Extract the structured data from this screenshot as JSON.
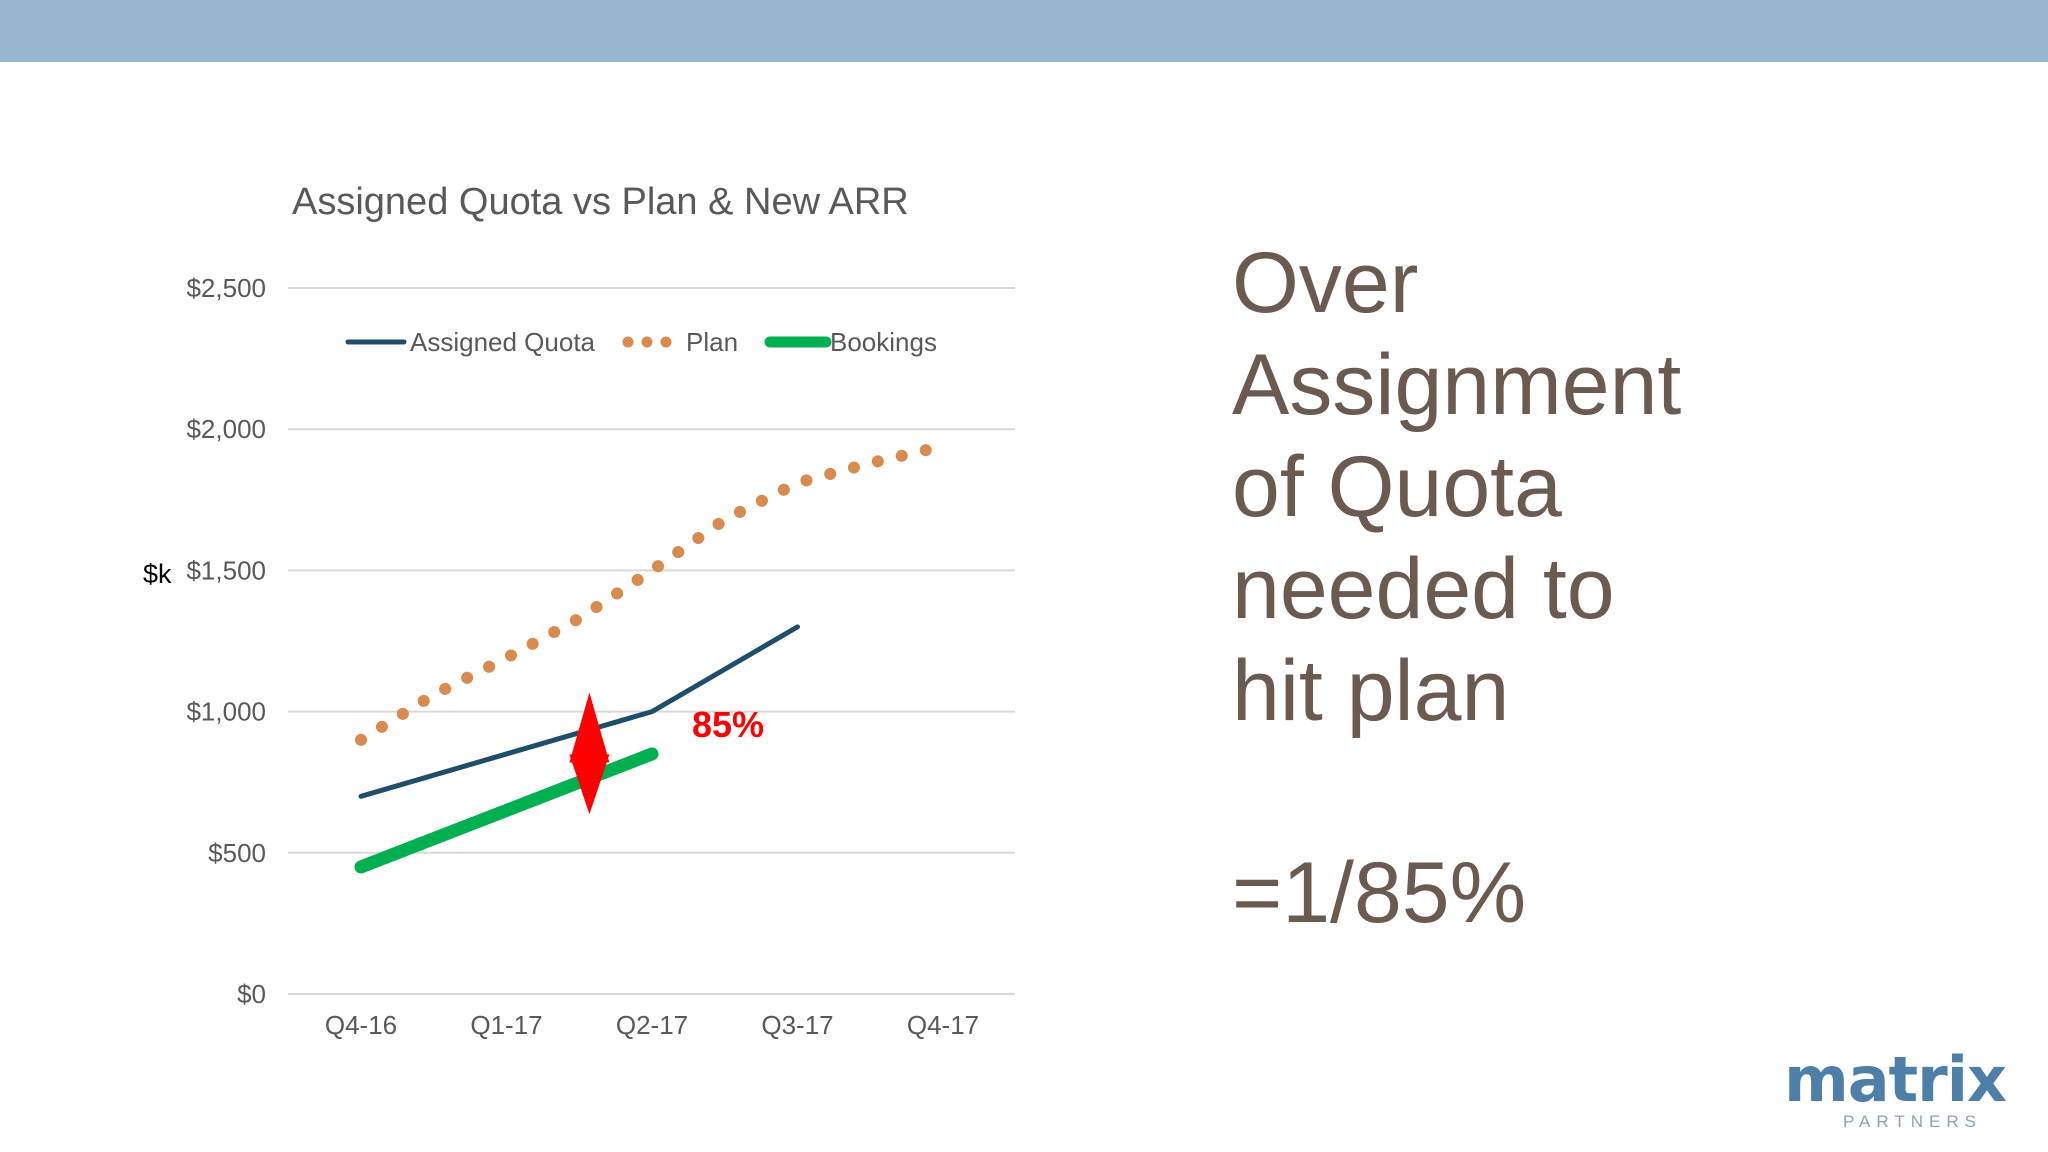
{
  "slide": {
    "headline_lines": [
      "Over",
      "Assignment",
      "of Quota",
      "needed to",
      "hit plan"
    ],
    "formula": "=1/85%",
    "logo": {
      "word": "matrix",
      "sub": "PARTNERS"
    },
    "colors": {
      "band": "#98b5d0",
      "headline": "#6b5a4f",
      "logo": "#4d7fa8"
    }
  },
  "chart_data": {
    "type": "line",
    "title": "Assigned Quota vs Plan & New ARR",
    "ylabel": "$k",
    "xlabel": "",
    "categories": [
      "Q4-16",
      "Q1-17",
      "Q2-17",
      "Q3-17",
      "Q4-17"
    ],
    "ylim": [
      0,
      2500
    ],
    "yticks": [
      0,
      500,
      1000,
      1500,
      2000,
      2500
    ],
    "ytick_labels": [
      "$0",
      "$500",
      "$1,000",
      "$1,500",
      "$2,000",
      "$2,500"
    ],
    "grid": true,
    "legend_position": "top",
    "series": [
      {
        "name": "Assigned Quota",
        "style": "solid",
        "color": "#1f4e6b",
        "x": [
          0,
          1,
          2,
          3
        ],
        "values": [
          700,
          850,
          1000,
          1300
        ]
      },
      {
        "name": "Plan",
        "style": "dotted",
        "color": "#d98a4e",
        "x": [
          0,
          0.5,
          1,
          1.5,
          2,
          2.5,
          3,
          3.5,
          4
        ],
        "values": [
          900,
          1060,
          1190,
          1330,
          1500,
          1680,
          1810,
          1880,
          1940
        ]
      },
      {
        "name": "Bookings",
        "style": "thick",
        "color": "#00b050",
        "x": [
          0,
          1,
          2
        ],
        "values": [
          450,
          650,
          850
        ]
      }
    ],
    "annotation": {
      "text": "85%",
      "color": "#ff0000",
      "x": 1.57,
      "y_from": 785,
      "y_to": 940
    }
  }
}
